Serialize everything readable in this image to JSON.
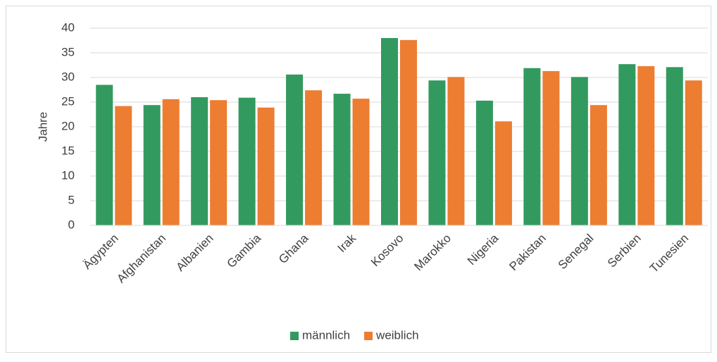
{
  "chart_data": {
    "type": "bar",
    "y_label": "Jahre",
    "categories": [
      "Ägypten",
      "Afghanistan",
      "Albanien",
      "Gambia",
      "Ghana",
      "Irak",
      "Kosovo",
      "Marokko",
      "Nigeria",
      "Pakistan",
      "Senegal",
      "Serbien",
      "Tunesien"
    ],
    "series": [
      {
        "name": "männlich",
        "color": "#339a5f",
        "values": [
          28.5,
          24.4,
          26.0,
          25.9,
          30.6,
          26.7,
          38.0,
          29.4,
          25.3,
          31.9,
          30.1,
          32.7,
          32.1
        ]
      },
      {
        "name": "weiblich",
        "color": "#ed7d31",
        "values": [
          24.2,
          25.6,
          25.4,
          23.9,
          27.4,
          25.7,
          37.6,
          30.1,
          21.1,
          31.3,
          24.4,
          32.3,
          29.4
        ]
      }
    ],
    "ylim": [
      0,
      40
    ],
    "yticks": [
      0,
      5,
      10,
      15,
      20,
      25,
      30,
      35,
      40
    ],
    "grid": true,
    "legend": "bottom"
  }
}
